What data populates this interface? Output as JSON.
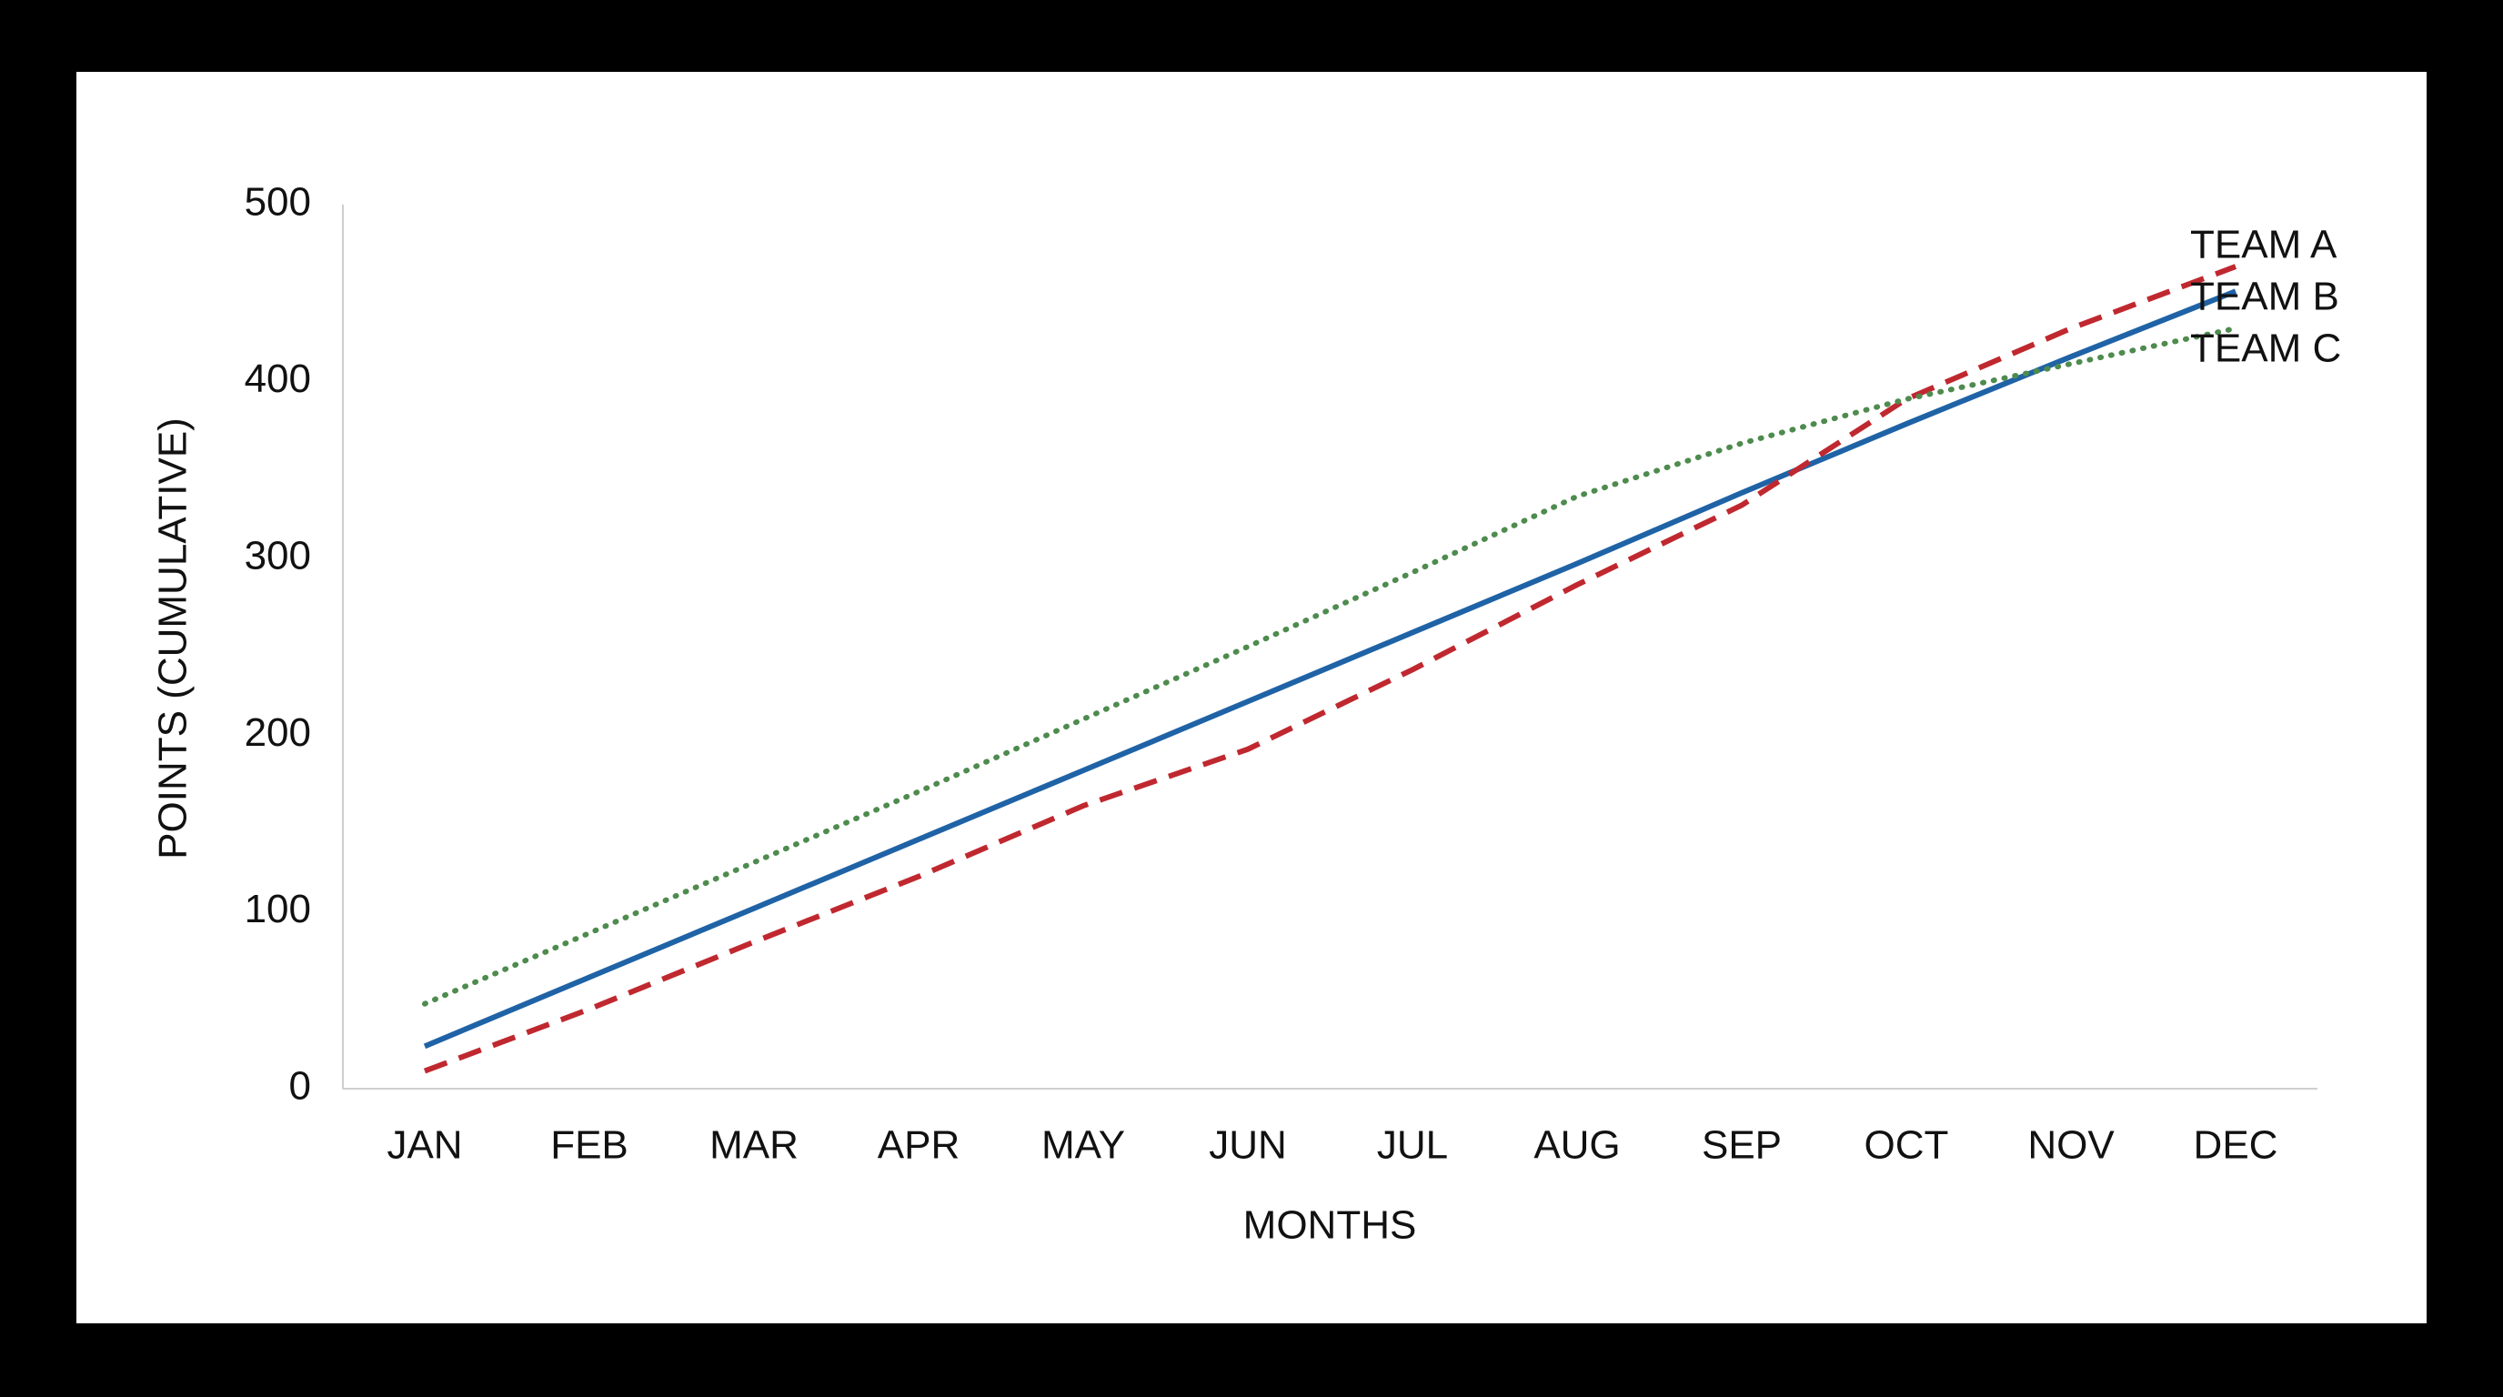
{
  "chart_data": {
    "type": "line",
    "x_label": "MONTHS",
    "y_label": "POINTS (CUMULATIVE)",
    "categories": [
      "JAN",
      "FEB",
      "MAR",
      "APR",
      "MAY",
      "JUN",
      "JUL",
      "AUG",
      "SEP",
      "OCT",
      "NOV",
      "DEC"
    ],
    "series": [
      {
        "name": "TEAM A",
        "color": "#1f63a6",
        "style": "solid",
        "values": [
          24,
          63,
          102,
          141,
          180,
          219,
          258,
          297,
          337,
          376,
          414,
          451
        ]
      },
      {
        "name": "TEAM B",
        "color": "#c0282f",
        "style": "dashed",
        "values": [
          10,
          45,
          83,
          120,
          160,
          192,
          237,
          285,
          330,
          390,
          430,
          465
        ]
      },
      {
        "name": "TEAM C",
        "color": "#4e8b4e",
        "style": "dotted",
        "values": [
          48,
          88,
          128,
          168,
          209,
          250,
          292,
          335,
          365,
          390,
          410,
          430
        ]
      }
    ],
    "ylim": [
      0,
      500
    ],
    "yticks": [
      0,
      100,
      200,
      300,
      400,
      500
    ],
    "grid": false,
    "legend": "right"
  }
}
